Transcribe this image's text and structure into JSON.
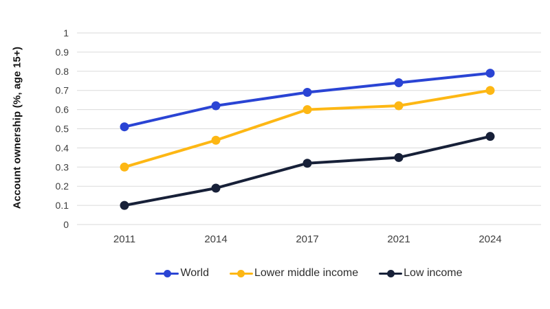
{
  "chart_data": {
    "type": "line",
    "title": "",
    "xlabel": "",
    "ylabel": "Account ownership (%, age 15+)",
    "categories": [
      "2011",
      "2014",
      "2017",
      "2021",
      "2024"
    ],
    "series": [
      {
        "name": "World",
        "color": "#2A44D4",
        "values": [
          0.51,
          0.62,
          0.69,
          0.74,
          0.79
        ]
      },
      {
        "name": "Lower middle income",
        "color": "#FDB714",
        "values": [
          0.3,
          0.44,
          0.6,
          0.62,
          0.7
        ]
      },
      {
        "name": "Low income",
        "color": "#172038",
        "values": [
          0.1,
          0.19,
          0.32,
          0.35,
          0.46
        ]
      }
    ],
    "y_ticks": [
      "0",
      "0.1",
      "0.2",
      "0.3",
      "0.4",
      "0.5",
      "0.6",
      "0.7",
      "0.8",
      "0.9",
      "1"
    ],
    "ylim": [
      0,
      1
    ],
    "grid": "horizontal",
    "legend_position": "bottom"
  },
  "colors": {
    "grid_line": "#DADADA",
    "tick_text": "#3D3D3D",
    "axis_title_text": "#111111",
    "legend_text": "#2D2D2D",
    "background": "#FFFFFF"
  }
}
